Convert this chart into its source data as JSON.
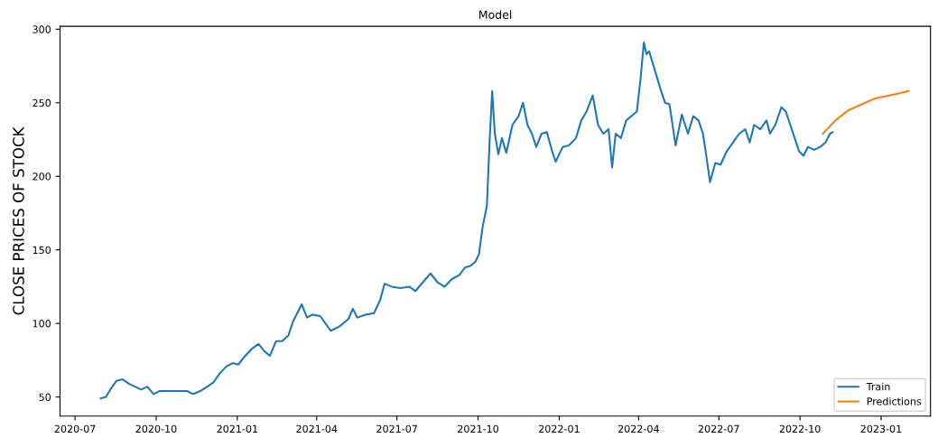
{
  "chart_data": {
    "type": "line",
    "title": "Model",
    "ylabel": "CLOSE PRICES OF STOCK",
    "xlim": [
      "2020-06-14",
      "2023-02-26"
    ],
    "ylim": [
      37,
      302
    ],
    "xticks": [
      "2020-07",
      "2020-10",
      "2021-01",
      "2021-04",
      "2021-07",
      "2021-10",
      "2022-01",
      "2022-04",
      "2022-07",
      "2022-10",
      "2023-01"
    ],
    "yticks": [
      50,
      100,
      150,
      200,
      250,
      300
    ],
    "grid": false,
    "legend": "bottom right",
    "series": [
      {
        "name": "Train",
        "color": "#1f77b4",
        "x": [
          "2020-07-30",
          "2020-08-05",
          "2020-08-10",
          "2020-08-17",
          "2020-08-24",
          "2020-08-31",
          "2020-09-07",
          "2020-09-14",
          "2020-09-21",
          "2020-09-28",
          "2020-10-05",
          "2020-10-15",
          "2020-10-26",
          "2020-11-05",
          "2020-11-12",
          "2020-11-20",
          "2020-11-28",
          "2020-12-05",
          "2020-12-12",
          "2020-12-20",
          "2020-12-27",
          "2021-01-02",
          "2021-01-10",
          "2021-01-18",
          "2021-01-25",
          "2021-02-01",
          "2021-02-07",
          "2021-02-14",
          "2021-02-21",
          "2021-02-28",
          "2021-03-05",
          "2021-03-15",
          "2021-03-21",
          "2021-03-27",
          "2021-04-05",
          "2021-04-17",
          "2021-04-27",
          "2021-05-07",
          "2021-05-12",
          "2021-05-17",
          "2021-05-27",
          "2021-06-05",
          "2021-06-12",
          "2021-06-17",
          "2021-06-25",
          "2021-07-05",
          "2021-07-15",
          "2021-07-22",
          "2021-08-08",
          "2021-08-16",
          "2021-08-24",
          "2021-09-01",
          "2021-09-10",
          "2021-09-16",
          "2021-09-22",
          "2021-09-28",
          "2021-10-02",
          "2021-10-06",
          "2021-10-11",
          "2021-10-14",
          "2021-10-17",
          "2021-10-20",
          "2021-10-24",
          "2021-10-28",
          "2021-11-02",
          "2021-11-09",
          "2021-11-16",
          "2021-11-21",
          "2021-11-26",
          "2021-12-01",
          "2021-12-06",
          "2021-12-12",
          "2021-12-18",
          "2021-12-24",
          "2021-12-28",
          "2022-01-05",
          "2022-01-12",
          "2022-01-20",
          "2022-01-26",
          "2022-02-01",
          "2022-02-08",
          "2022-02-14",
          "2022-02-20",
          "2022-02-26",
          "2022-03-02",
          "2022-03-06",
          "2022-03-12",
          "2022-03-18",
          "2022-03-24",
          "2022-03-30",
          "2022-04-03",
          "2022-04-07",
          "2022-04-10",
          "2022-04-13",
          "2022-04-20",
          "2022-04-26",
          "2022-05-01",
          "2022-05-06",
          "2022-05-13",
          "2022-05-20",
          "2022-05-27",
          "2022-06-02",
          "2022-06-08",
          "2022-06-13",
          "2022-06-17",
          "2022-06-21",
          "2022-06-27",
          "2022-07-03",
          "2022-07-10",
          "2022-07-17",
          "2022-07-24",
          "2022-07-31",
          "2022-08-05",
          "2022-08-10",
          "2022-08-17",
          "2022-08-24",
          "2022-08-28",
          "2022-09-03",
          "2022-09-10",
          "2022-09-15",
          "2022-09-20",
          "2022-09-25",
          "2022-09-30",
          "2022-10-05",
          "2022-10-10",
          "2022-10-17",
          "2022-10-24",
          "2022-10-30",
          "2022-11-04",
          "2022-11-07"
        ],
        "values": [
          49,
          50,
          55,
          61,
          62,
          59,
          57,
          55,
          57,
          52,
          54,
          54,
          54,
          54,
          52,
          54,
          57,
          60,
          66,
          71,
          73,
          72,
          78,
          83,
          86,
          81,
          78,
          88,
          88,
          92,
          101,
          113,
          104,
          106,
          105,
          95,
          98,
          103,
          110,
          104,
          106,
          107,
          116,
          127,
          125,
          124,
          125,
          122,
          134,
          128,
          125,
          130,
          133,
          138,
          139,
          142,
          147,
          165,
          180,
          223,
          258,
          229,
          215,
          226,
          216,
          235,
          241,
          250,
          235,
          229,
          220,
          229,
          230,
          217,
          210,
          220,
          221,
          226,
          238,
          244,
          255,
          235,
          229,
          232,
          206,
          229,
          226,
          238,
          241,
          244,
          265,
          291,
          283,
          285,
          271,
          259,
          250,
          249,
          221,
          242,
          229,
          241,
          238,
          229,
          213,
          196,
          209,
          208,
          217,
          223,
          229,
          232,
          223,
          235,
          232,
          238,
          229,
          235,
          247,
          244,
          235,
          226,
          217,
          214,
          220,
          218,
          220,
          223,
          229,
          230
        ]
      },
      {
        "name": "Predictions",
        "color": "#ff7f0e",
        "x": [
          "2022-10-27",
          "2022-11-10",
          "2022-11-25",
          "2022-12-10",
          "2022-12-25",
          "2023-01-10",
          "2023-01-25",
          "2023-02-01"
        ],
        "values": [
          229,
          238,
          245,
          249,
          253,
          255,
          257,
          258
        ]
      }
    ]
  }
}
